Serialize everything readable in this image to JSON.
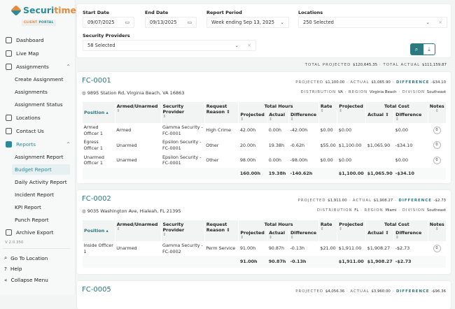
{
  "brand": {
    "name_a": "Securi",
    "name_b": "time",
    "portal_a": "CLIENT",
    "portal_b": "PORTAL"
  },
  "sidebar": {
    "items": [
      {
        "label": "Dashboard",
        "icon": "home-icon"
      },
      {
        "label": "Live Map",
        "icon": "map-icon"
      },
      {
        "label": "Assignments",
        "icon": "calendar-icon",
        "expanded": true
      },
      {
        "label": "Locations",
        "icon": "pin-icon"
      },
      {
        "label": "Contact Us",
        "icon": "chat-icon"
      },
      {
        "label": "Reports",
        "icon": "document-icon",
        "expanded": true,
        "active": true
      },
      {
        "label": "Archive Export",
        "icon": "history-icon"
      }
    ],
    "assignments_sub": [
      "Create Assignment",
      "Assignments",
      "Assignment Status"
    ],
    "reports_sub": [
      "Assignment Report",
      "Budget Report",
      "Daily Activity Report",
      "Incident Report",
      "KPI Report",
      "Punch Report"
    ],
    "selected_sub": "Budget Report",
    "version": "V 2.0.350",
    "bottom": [
      {
        "label": "Go To Location",
        "icon": "search-icon"
      },
      {
        "label": "Help",
        "icon": "help-icon"
      },
      {
        "label": "Collapse Menu",
        "icon": "double-chevron-left-icon"
      }
    ]
  },
  "filters": {
    "start_date_label": "Start Date",
    "start_date": "09/07/2025",
    "end_date_label": "End Date",
    "end_date": "09/13/2025",
    "period_label": "Report Period",
    "period": "Week ending Sep 13, 2025",
    "locations_label": "Locations",
    "locations": "250 Selected",
    "providers_label": "Security Providers",
    "providers": "58 Selected"
  },
  "totals": {
    "projected_label": "TOTAL PROJECTED",
    "projected": "$120,645.35",
    "actual_label": "TOTAL ACTUAL",
    "actual": "$111,159.87"
  },
  "headers": {
    "position": "Position",
    "armed": "Armed/Unarmed",
    "provider": "Security Provider",
    "reason": "Request Reason",
    "total_hours": "Total Hours",
    "projected": "Projected",
    "actual": "Actual",
    "difference": "Difference",
    "rate": "Rate",
    "total_cost": "Total Cost",
    "notes": "Notes"
  },
  "labels": {
    "projected": "PROJECTED",
    "actual": "ACTUAL",
    "difference": "DIFFERENCE",
    "distribution": "DISTRIBUTION",
    "region": "REGION",
    "division": "DIVISION"
  },
  "accent": "#2a7a80",
  "cards": [
    {
      "code": "FC-0001",
      "address": "9895 Station Rd, Virginia Beach, VA 16863",
      "projected": "$1,100.00",
      "actual": "$1,065.90",
      "difference": "-$34.10",
      "distribution": "VA",
      "region": "Virginia Beach",
      "division": "Southeast",
      "rows": [
        [
          "Armed Officer 1",
          "Armed",
          "Gamma Security - FC-0001",
          "High Crime",
          "42.00h",
          "0.00h",
          "-42.00h",
          "$0.00",
          "$0.00",
          "",
          "$0.00",
          "0"
        ],
        [
          "Egress Officer 1",
          "Unarmed",
          "Epsilon Security - FC-0001",
          "Other",
          "20.00h",
          "19.38h",
          "-0.62h",
          "$55.00",
          "$1,100.00",
          "$1,065.90",
          "-$34.10",
          "0"
        ],
        [
          "Unarmed Officer 1",
          "Unarmed",
          "Epsilon Security - FC-0001",
          "Other",
          "98.00h",
          "0.00h",
          "-98.00h",
          "$0.00",
          "$0.00",
          "",
          "$0.00",
          "0"
        ]
      ],
      "total": [
        "",
        "",
        "",
        "",
        "160.00h",
        "19.38h",
        "-140.62h",
        "",
        "$1,100.00",
        "$1,065.90",
        "-$34.10",
        ""
      ]
    },
    {
      "code": "FC-0002",
      "address": "9035 Washington Ave, Hialeah, FL 21395",
      "projected": "$1,911.00",
      "actual": "$1,908.27",
      "difference": "-$2.73",
      "distribution": "FL",
      "region": "Miami",
      "division": "Southeast",
      "rows": [
        [
          "Inside Officer 1",
          "Unarmed",
          "Gamma Security - FC-0002",
          "Perm Service",
          "91.00h",
          "90.87h",
          "-0.13h",
          "$21.00",
          "$1,911.00",
          "$1,908.27",
          "-$2.73",
          "0"
        ]
      ],
      "total": [
        "",
        "",
        "",
        "",
        "91.00h",
        "90.87h",
        "-0.13h",
        "",
        "$1,911.00",
        "$1,908.27",
        "-$2.73",
        ""
      ]
    },
    {
      "code": "FC-0005",
      "projected": "$4,056.36",
      "actual": "$3,960.00",
      "difference": "-$96.36"
    }
  ]
}
